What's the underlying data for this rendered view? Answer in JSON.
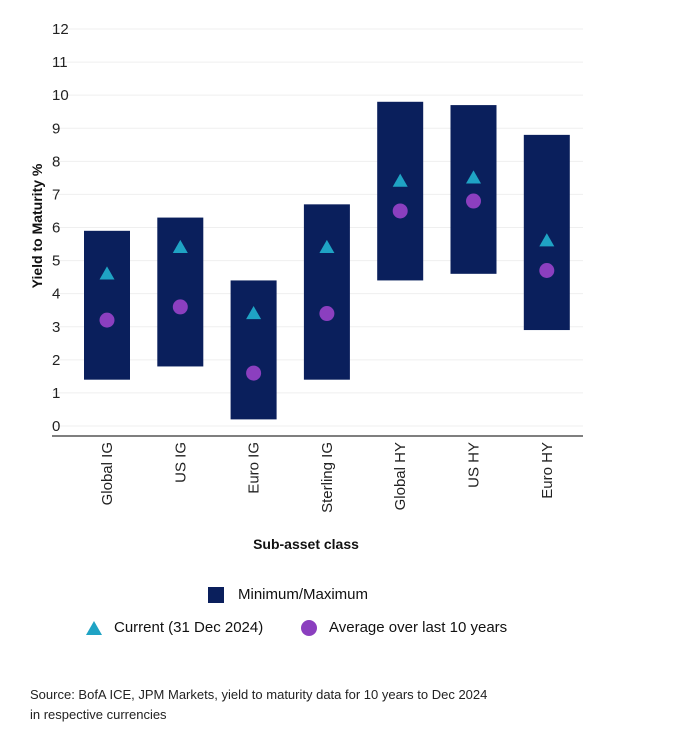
{
  "chart_data": {
    "type": "range",
    "ylabel": "Yield to Maturity %",
    "xlabel": "Sub-asset class",
    "ylim": [
      0,
      12
    ],
    "yticks": [
      "0",
      "1",
      "2",
      "3",
      "4",
      "5",
      "6",
      "7",
      "8",
      "9",
      "10",
      "11",
      "12"
    ],
    "categories": [
      "Global IG",
      "US IG",
      "Euro IG",
      "Sterling IG",
      "Global HY",
      "US HY",
      "Euro HY"
    ],
    "series": [
      {
        "name": "Minimum/Maximum",
        "min": [
          1.4,
          1.8,
          0.2,
          1.4,
          4.4,
          4.6,
          2.9
        ],
        "max": [
          5.9,
          6.3,
          4.4,
          6.7,
          9.8,
          9.7,
          8.8
        ]
      },
      {
        "name": "Current (31 Dec 2024)",
        "values": [
          4.6,
          5.4,
          3.4,
          5.4,
          7.4,
          7.5,
          5.6
        ]
      },
      {
        "name": "Average over last 10 years",
        "values": [
          3.2,
          3.6,
          1.6,
          3.4,
          6.5,
          6.8,
          4.7
        ]
      }
    ],
    "colors": {
      "range": "#0a1f5c",
      "current": "#1fa3c4",
      "average": "#8b3fbf"
    },
    "legend_position": "bottom",
    "grid": true
  },
  "legend": {
    "minmax": "Minimum/Maximum",
    "current": "Current (31 Dec 2024)",
    "average": "Average over last 10 years"
  },
  "source": {
    "line1": "Source: BofA ICE, JPM Markets, yield to maturity data for 10 years to Dec 2024",
    "line2": "in respective currencies"
  }
}
